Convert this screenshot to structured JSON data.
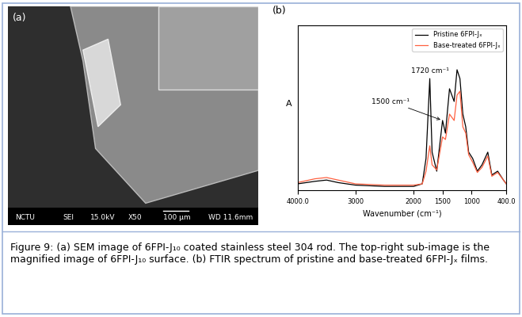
{
  "panel_a": {
    "label": "(a)",
    "image_bar_texts": [
      "NCTU",
      "SEI",
      "15.0kV",
      "X50",
      "100 μm",
      "WD 11.6mm"
    ]
  },
  "chart_data": {
    "label": "(b)",
    "type": "line",
    "x_label": "Wavenumber (cm⁻¹)",
    "y_label": "A",
    "x": [
      4000,
      3700,
      3500,
      3300,
      3000,
      2500,
      2000,
      1850,
      1785,
      1720,
      1680,
      1600,
      1500,
      1450,
      1380,
      1300,
      1250,
      1200,
      1150,
      1100,
      1050,
      980,
      900,
      820,
      720,
      650,
      550,
      450,
      400
    ],
    "series": [
      {
        "name": "Pristine 6FPI-Jₓ",
        "color": "#000000",
        "line_style": "solid",
        "values": [
          0.05,
          0.07,
          0.08,
          0.06,
          0.04,
          0.03,
          0.03,
          0.05,
          0.25,
          0.88,
          0.3,
          0.15,
          0.55,
          0.45,
          0.8,
          0.7,
          0.95,
          0.88,
          0.6,
          0.5,
          0.3,
          0.25,
          0.15,
          0.2,
          0.3,
          0.12,
          0.15,
          0.08,
          0.05
        ]
      },
      {
        "name": "Base-treated 6FPI-Jₓ",
        "color": "#ff6040",
        "line_style": "solid",
        "values": [
          0.06,
          0.09,
          0.1,
          0.08,
          0.05,
          0.04,
          0.04,
          0.05,
          0.15,
          0.35,
          0.2,
          0.16,
          0.42,
          0.4,
          0.6,
          0.55,
          0.75,
          0.78,
          0.5,
          0.45,
          0.28,
          0.22,
          0.14,
          0.18,
          0.27,
          0.11,
          0.14,
          0.08,
          0.05
        ]
      }
    ],
    "xlim": [
      4000,
      400
    ],
    "xticks": [
      {
        "value": 4000,
        "label": "4000.0"
      },
      3000,
      2000,
      1500,
      1000,
      {
        "value": 400,
        "label": "400.0"
      }
    ],
    "ylim": [
      0,
      1.3
    ],
    "yticks": [],
    "tick_labels": "x",
    "legend": "upper right",
    "annotations": [
      {
        "text": "1720 cm⁻¹",
        "x": 1720
      },
      {
        "text": "1500 cm⁻¹",
        "x": 1500
      }
    ]
  },
  "caption": "Figure 9: (a) SEM image of 6FPI-J₁₀ coated stainless steel 304 rod. The top-right sub-image is the magnified image of 6FPI-J₁₀ surface. (b) FTIR spectrum of pristine and base-treated 6FPI-Jₓ films."
}
